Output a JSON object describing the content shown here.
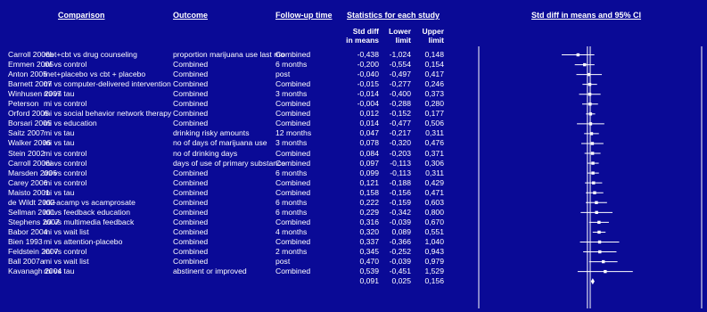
{
  "headers": {
    "comparison": "Comparison",
    "outcome": "Outcome",
    "followup": "Follow-up time",
    "stats": "Statistics for each study",
    "plot": "Std diff in means and 95% CI",
    "std_line1": "Std diff",
    "std_line2": "in means",
    "lower_line1": "Lower",
    "lower_line2": "limit",
    "upper_line1": "Upper",
    "upper_line2": "limit"
  },
  "chart_data": {
    "type": "forest",
    "xlim": [
      -4,
      4
    ],
    "reference_line": 0,
    "rows": [
      {
        "study": "Carroll 2006b",
        "comparison": "met+cbt vs drug counseling",
        "outcome": "proportion marijuana use last mo",
        "followup": "Combined",
        "std": "-0,438",
        "lower": "-1,024",
        "upper": "0,148",
        "v": -0.438,
        "lo": -1.024,
        "hi": 0.148
      },
      {
        "study": "Emmen 2005",
        "comparison": "mi vs control",
        "outcome": "Combined",
        "followup": "6 months",
        "std": "-0,200",
        "lower": "-0,554",
        "upper": "0,154",
        "v": -0.2,
        "lo": -0.554,
        "hi": 0.154
      },
      {
        "study": "Anton 2005",
        "comparison": "met+placebo vs cbt + placebo",
        "outcome": "Combined",
        "followup": "post",
        "std": "-0,040",
        "lower": "-0,497",
        "upper": "0,417",
        "v": -0.04,
        "lo": -0.497,
        "hi": 0.417
      },
      {
        "study": "Barnett 2007",
        "comparison": "mi vs computer-delivered intervention",
        "outcome": "Combined",
        "followup": "Combined",
        "std": "-0,015",
        "lower": "-0,277",
        "upper": "0,246",
        "v": -0.015,
        "lo": -0.277,
        "hi": 0.246
      },
      {
        "study": "Winhusen 2007",
        "comparison": "mi vs tau",
        "outcome": "Combined",
        "followup": "3 months",
        "std": "-0,014",
        "lower": "-0,400",
        "upper": "0,373",
        "v": -0.014,
        "lo": -0.4,
        "hi": 0.373
      },
      {
        "study": "Peterson",
        "comparison": "mi vs control",
        "outcome": "Combined",
        "followup": "Combined",
        "std": "-0,004",
        "lower": "-0,288",
        "upper": "0,280",
        "v": -0.004,
        "lo": -0.288,
        "hi": 0.28
      },
      {
        "study": "Orford 2005",
        "comparison": "mi vs social behavior network therapy",
        "outcome": "Combined",
        "followup": "Combined",
        "std": "0,012",
        "lower": "-0,152",
        "upper": "0,177",
        "v": 0.012,
        "lo": -0.152,
        "hi": 0.177
      },
      {
        "study": "Borsari 2005",
        "comparison": "mi vs education",
        "outcome": "Combined",
        "followup": "Combined",
        "std": "0,014",
        "lower": "-0,477",
        "upper": "0,506",
        "v": 0.014,
        "lo": -0.477,
        "hi": 0.506
      },
      {
        "study": "Saitz 2007",
        "comparison": "mi vs tau",
        "outcome": "drinking risky amounts",
        "followup": "12 months",
        "std": "0,047",
        "lower": "-0,217",
        "upper": "0,311",
        "v": 0.047,
        "lo": -0.217,
        "hi": 0.311
      },
      {
        "study": "Walker 2006",
        "comparison": "mi vs tau",
        "outcome": "no of days of marijuana use",
        "followup": "3 months",
        "std": "0,078",
        "lower": "-0,320",
        "upper": "0,476",
        "v": 0.078,
        "lo": -0.32,
        "hi": 0.476
      },
      {
        "study": "Stein 2002",
        "comparison": "mi vs control",
        "outcome": "no of drinking days",
        "followup": "Combined",
        "std": "0,084",
        "lower": "-0,203",
        "upper": "0,371",
        "v": 0.084,
        "lo": -0.203,
        "hi": 0.371
      },
      {
        "study": "Carroll 2006a",
        "comparison": "mi vs control",
        "outcome": "days of use of primary substance",
        "followup": "Combined",
        "std": "0,097",
        "lower": "-0,113",
        "upper": "0,306",
        "v": 0.097,
        "lo": -0.113,
        "hi": 0.306
      },
      {
        "study": "Marsden 2006",
        "comparison": "mi vs control",
        "outcome": "Combined",
        "followup": "6 months",
        "std": "0,099",
        "lower": "-0,113",
        "upper": "0,311",
        "v": 0.099,
        "lo": -0.113,
        "hi": 0.311
      },
      {
        "study": "Carey 2006",
        "comparison": "mi vs control",
        "outcome": "Combined",
        "followup": "Combined",
        "std": "0,121",
        "lower": "-0,188",
        "upper": "0,429",
        "v": 0.121,
        "lo": -0.188,
        "hi": 0.429
      },
      {
        "study": "Maisto 2001",
        "comparison": "mi vs tau",
        "outcome": "Combined",
        "followup": "Combined",
        "std": "0,158",
        "lower": "-0,156",
        "upper": "0,471",
        "v": 0.158,
        "lo": -0.156,
        "hi": 0.471
      },
      {
        "study": "de Wildt 2002",
        "comparison": "mi+acamp vs acamprosate",
        "outcome": "Combined",
        "followup": "6 months",
        "std": "0,222",
        "lower": "-0,159",
        "upper": "0,603",
        "v": 0.222,
        "lo": -0.159,
        "hi": 0.603
      },
      {
        "study": "Sellman 2001",
        "comparison": "mi vs feedback education",
        "outcome": "Combined",
        "followup": "6 months",
        "std": "0,229",
        "lower": "-0,342",
        "upper": "0,800",
        "v": 0.229,
        "lo": -0.342,
        "hi": 0.8
      },
      {
        "study": "Stephens 2007",
        "comparison": "mi vs multimedia feedback",
        "outcome": "Combined",
        "followup": "Combined",
        "std": "0,316",
        "lower": "-0,039",
        "upper": "0,670",
        "v": 0.316,
        "lo": -0.039,
        "hi": 0.67
      },
      {
        "study": "Babor 2004",
        "comparison": "mi vs wait list",
        "outcome": "Combined",
        "followup": "4 months",
        "std": "0,320",
        "lower": "0,089",
        "upper": "0,551",
        "v": 0.32,
        "lo": 0.089,
        "hi": 0.551
      },
      {
        "study": "Bien 1993",
        "comparison": "mi vs attention-placebo",
        "outcome": "Combined",
        "followup": "Combined",
        "std": "0,337",
        "lower": "-0,366",
        "upper": "1,040",
        "v": 0.337,
        "lo": -0.366,
        "hi": 1.04
      },
      {
        "study": "Feldstein 2007",
        "comparison": "mi vs control",
        "outcome": "Combined",
        "followup": "2 months",
        "std": "0,345",
        "lower": "-0,252",
        "upper": "0,943",
        "v": 0.345,
        "lo": -0.252,
        "hi": 0.943
      },
      {
        "study": "Ball 2007a",
        "comparison": "mi vs wait list",
        "outcome": "Combined",
        "followup": "post",
        "std": "0,470",
        "lower": "-0,039",
        "upper": "0,979",
        "v": 0.47,
        "lo": -0.039,
        "hi": 0.979
      },
      {
        "study": "Kavanagh 2004",
        "comparison": "mi vs tau",
        "outcome": "abstinent or improved",
        "followup": "Combined",
        "std": "0,539",
        "lower": "-0,451",
        "upper": "1,529",
        "v": 0.539,
        "lo": -0.451,
        "hi": 1.529
      }
    ],
    "summary": {
      "std": "0,091",
      "lower": "0,025",
      "upper": "0,156",
      "v": 0.091,
      "lo": 0.025,
      "hi": 0.156
    },
    "colors": {
      "background": "#0a0a96",
      "foreground": "#ffffff"
    }
  }
}
